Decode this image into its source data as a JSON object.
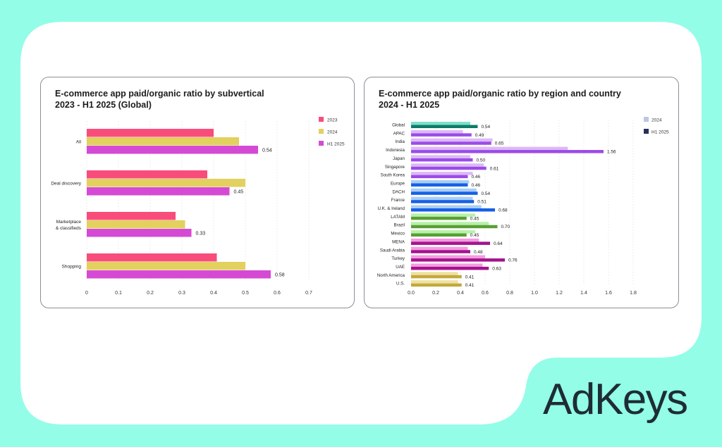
{
  "brand": {
    "logo_text": "AdKeys",
    "background_color": "#93FDE8",
    "logo_color": "#1E2D33"
  },
  "chart_data": [
    {
      "type": "bar",
      "orientation": "horizontal",
      "title": "E-commerce app paid/organic ratio by subvertical",
      "subtitle": "2023 - H1 2025 (Global)",
      "categories": [
        "All",
        "Deal discovery",
        "Marketplace\n& classifieds",
        "Shopping"
      ],
      "series": [
        {
          "name": "2023",
          "color": "#F84D7B",
          "values": [
            0.4,
            0.38,
            0.28,
            0.41
          ]
        },
        {
          "name": "2024",
          "color": "#E2D05F",
          "values": [
            0.48,
            0.5,
            0.31,
            0.5
          ]
        },
        {
          "name": "H1 2025",
          "color": "#D54AD4",
          "values": [
            0.54,
            0.45,
            0.33,
            0.58
          ],
          "labeled": true
        }
      ],
      "data_labels": [
        "0.54",
        "0.45",
        "0.33",
        "0.58"
      ],
      "xlim": [
        0,
        0.7
      ],
      "xticks": [
        "0",
        "0.1",
        "0.2",
        "0.3",
        "0.4",
        "0.5",
        "0.6",
        "0.7"
      ],
      "xlabel": "",
      "ylabel": "",
      "grid": "vertical",
      "legend": "top-right"
    },
    {
      "type": "bar",
      "orientation": "horizontal",
      "title": "E-commerce app paid/organic ratio by region and country",
      "subtitle": "2024 - H1 2025",
      "categories": [
        "Global",
        "APAC",
        "India",
        "Indonesia",
        "Japan",
        "Singapore",
        "South Korea",
        "Europe",
        "DACH",
        "France",
        "U.K. & Ireland",
        "LATAM",
        "Brazil",
        "Mexico",
        "MENA",
        "Saudi Arabia",
        "Turkey",
        "UAE",
        "North America",
        "U.S."
      ],
      "groups": [
        {
          "name": "Global",
          "light": "#7EE0C8",
          "dark": "#0F7A6A",
          "members": [
            0
          ]
        },
        {
          "name": "APAC",
          "light": "#DDB8F7",
          "dark": "#9B4BE8",
          "members": [
            1,
            2,
            3,
            4,
            5,
            6
          ]
        },
        {
          "name": "Europe",
          "light": "#A9CDF5",
          "dark": "#1560E6",
          "members": [
            7,
            8,
            9,
            10
          ]
        },
        {
          "name": "LATAM",
          "light": "#B6F2A8",
          "dark": "#5A9E34",
          "members": [
            11,
            12,
            13
          ]
        },
        {
          "name": "MENA",
          "light": "#F49BE0",
          "dark": "#A3138E",
          "members": [
            14,
            15,
            16,
            17
          ]
        },
        {
          "name": "North America",
          "light": "#F0E1A0",
          "dark": "#C2A93A",
          "members": [
            18,
            19
          ]
        }
      ],
      "series": [
        {
          "name": "2024",
          "legend_color": "#BCC6E6",
          "values": [
            0.48,
            0.42,
            0.66,
            1.27,
            0.48,
            0.59,
            0.5,
            0.47,
            0.53,
            0.5,
            0.57,
            0.52,
            0.63,
            0.52,
            0.55,
            0.46,
            0.6,
            0.58,
            0.38,
            0.38
          ]
        },
        {
          "name": "H1 2025",
          "legend_color": "#27305A",
          "values": [
            0.54,
            0.49,
            0.65,
            1.56,
            0.5,
            0.61,
            0.46,
            0.46,
            0.54,
            0.51,
            0.68,
            0.45,
            0.7,
            0.45,
            0.64,
            0.48,
            0.76,
            0.63,
            0.41,
            0.41
          ],
          "labeled": true
        }
      ],
      "data_labels": [
        "0.54",
        "0.49",
        "0.65",
        "1.56",
        "0.50",
        "0.61",
        "0.46",
        "0.46",
        "0.54",
        "0.51",
        "0.68",
        "0.45",
        "0.70",
        "0.45",
        "0.64",
        "0.48",
        "0.76",
        "0.63",
        "0.41",
        "0.41"
      ],
      "xlim": [
        0,
        1.8
      ],
      "xticks": [
        "0.0",
        "0.2",
        "0.4",
        "0.6",
        "0.8",
        "1.0",
        "1.2",
        "1.4",
        "1.6",
        "1.8"
      ],
      "xlabel": "",
      "ylabel": "",
      "grid": "vertical",
      "legend": "top-right"
    }
  ]
}
